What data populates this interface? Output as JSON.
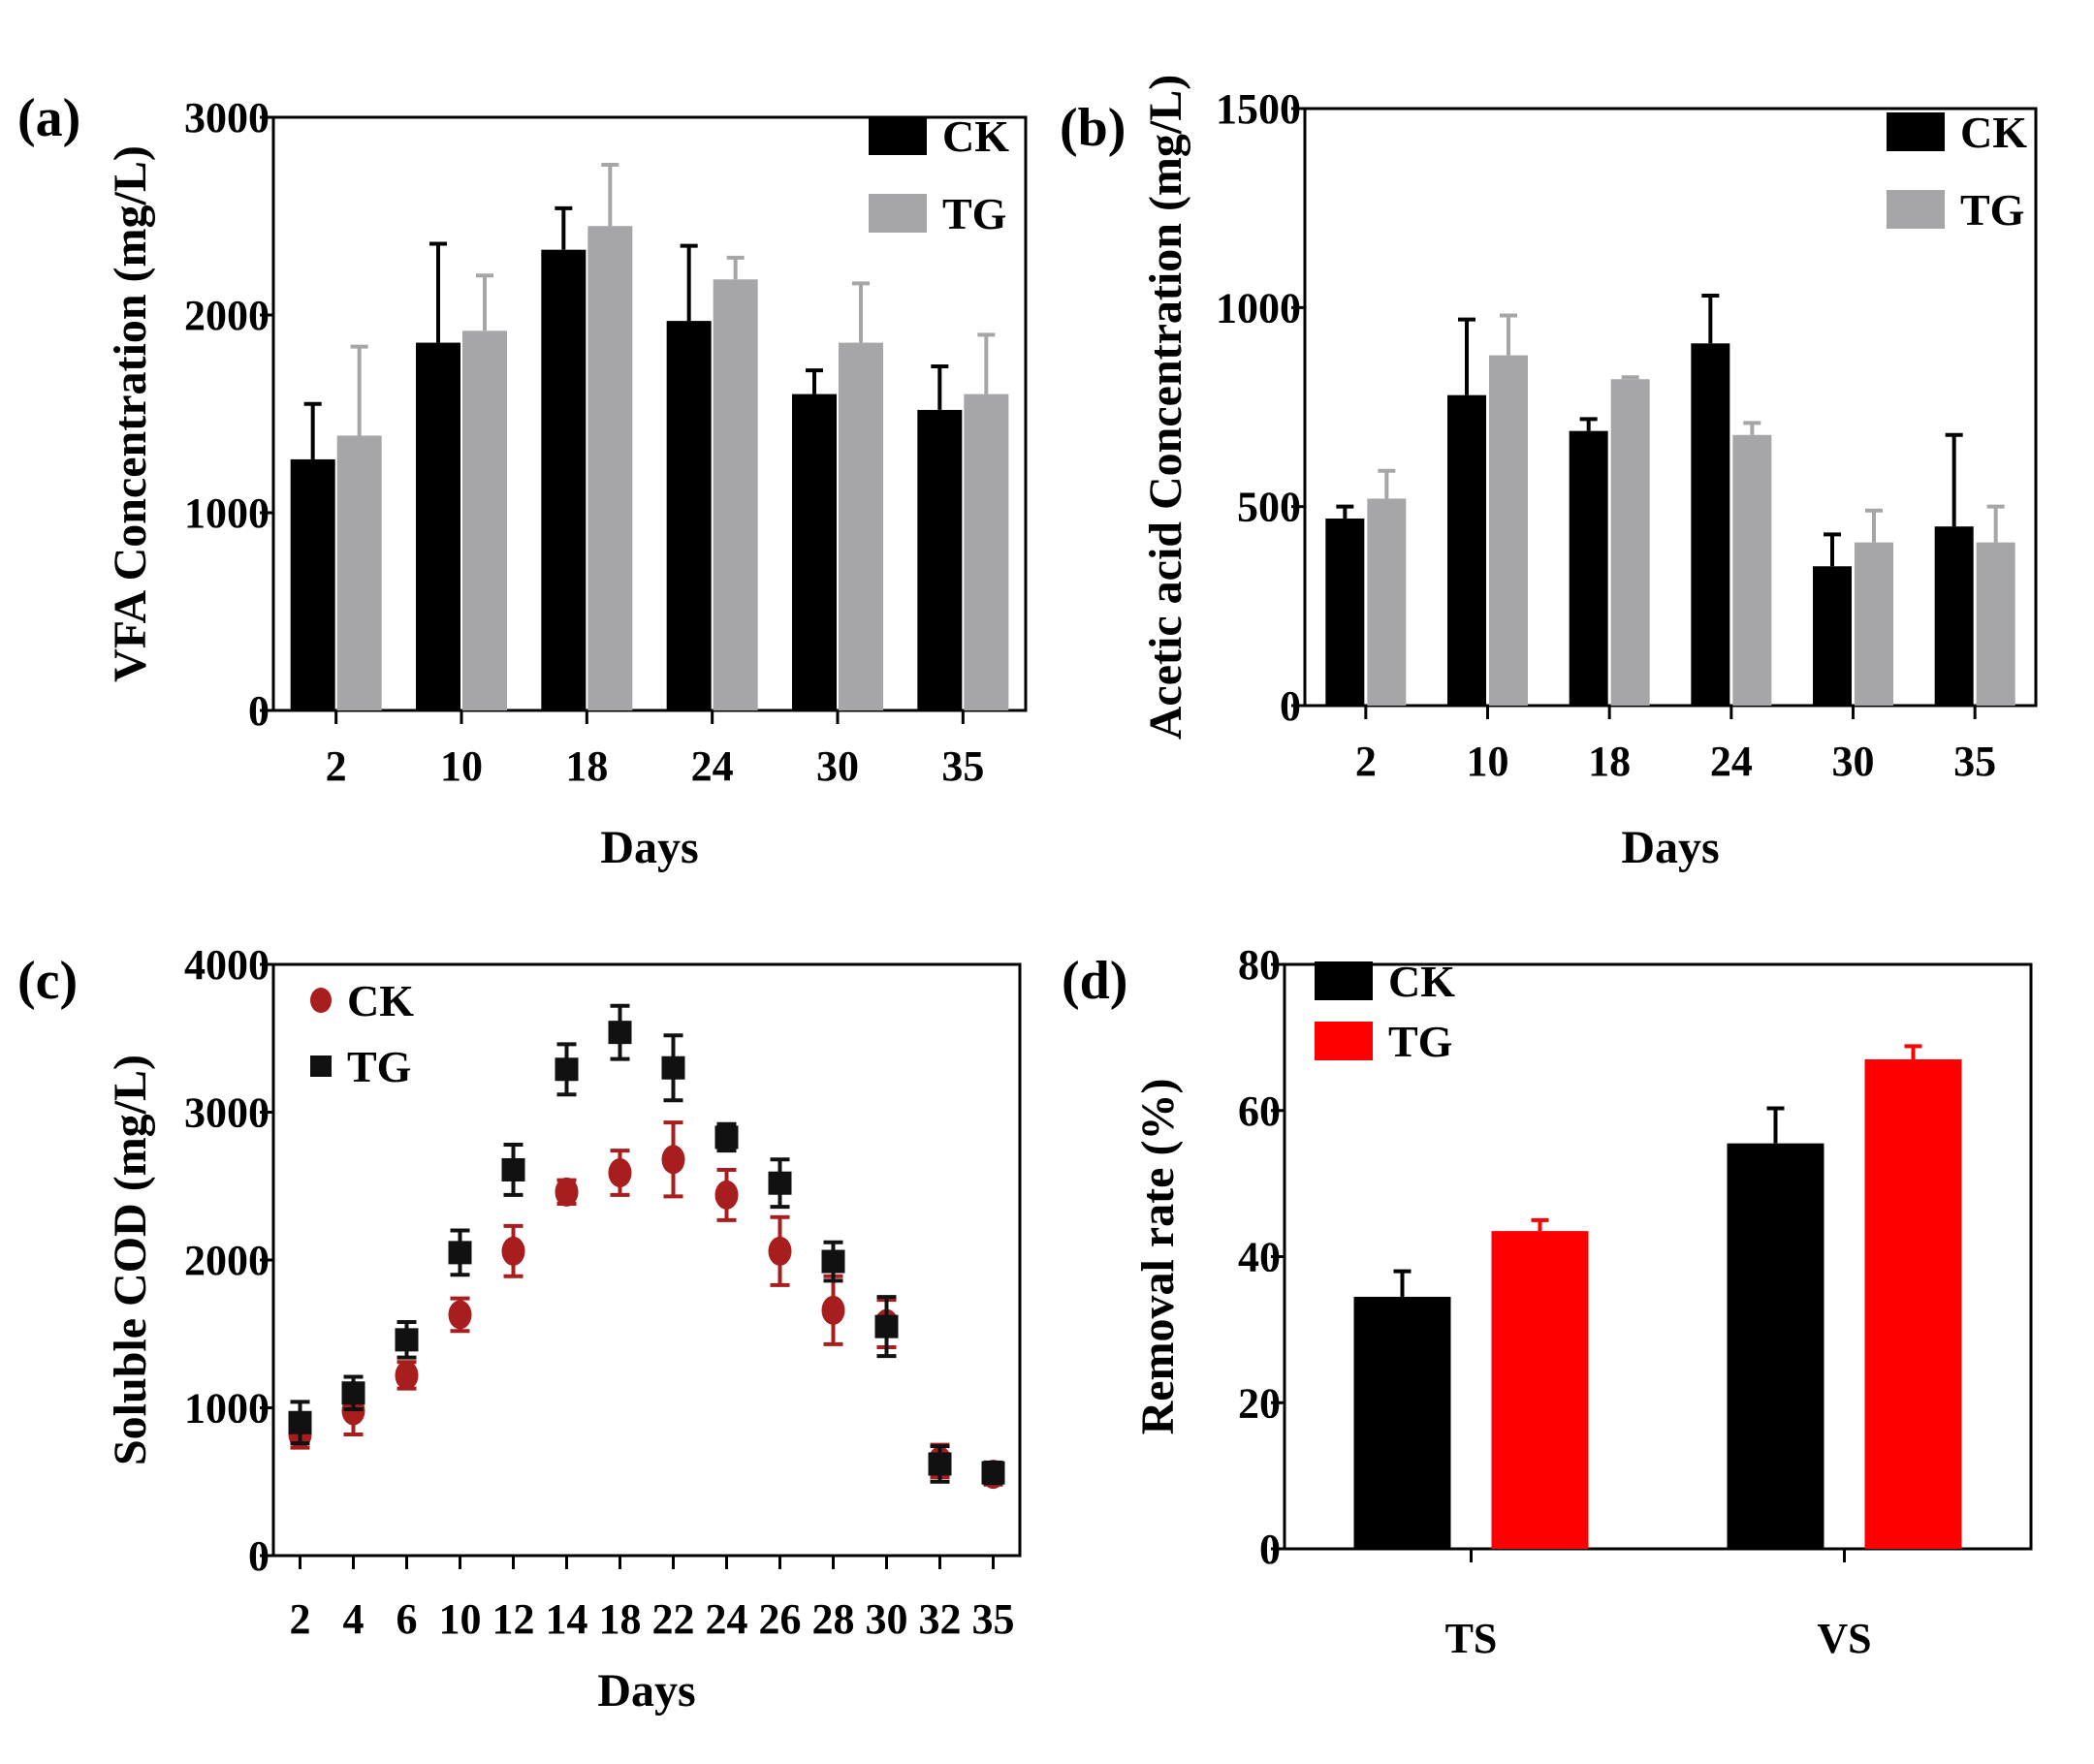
{
  "chart_data": [
    {
      "panel": "(a)",
      "type": "bar",
      "xlabel": "Days",
      "ylabel": "VFA Concentration (mg/L)",
      "ylim": [
        0,
        3000
      ],
      "yticks": [
        "0",
        "1000",
        "2000",
        "3000"
      ],
      "categories": [
        "2",
        "10",
        "18",
        "24",
        "30",
        "35"
      ],
      "legend_position": "top-right",
      "series": [
        {
          "name": "CK",
          "color": "#000000",
          "values": [
            1270,
            1860,
            2330,
            1970,
            1600,
            1520
          ],
          "errors": [
            280,
            500,
            210,
            380,
            120,
            220
          ]
        },
        {
          "name": "TG",
          "color": "#a6a6a8",
          "values": [
            1390,
            1920,
            2450,
            2180,
            1860,
            1600
          ],
          "errors": [
            450,
            280,
            310,
            110,
            300,
            300
          ]
        }
      ]
    },
    {
      "panel": "(b)",
      "type": "bar",
      "xlabel": "Days",
      "ylabel": "Acetic acid Concentration (mg/L)",
      "ylim": [
        0,
        1500
      ],
      "yticks": [
        "0",
        "500",
        "1000",
        "1500"
      ],
      "categories": [
        "2",
        "10",
        "18",
        "24",
        "30",
        "35"
      ],
      "legend_position": "top-right",
      "series": [
        {
          "name": "CK",
          "color": "#000000",
          "values": [
            470,
            780,
            690,
            910,
            350,
            450
          ],
          "errors": [
            30,
            190,
            30,
            120,
            80,
            230
          ]
        },
        {
          "name": "TG",
          "color": "#a6a6a8",
          "values": [
            520,
            880,
            820,
            680,
            410,
            410
          ],
          "errors": [
            70,
            100,
            5,
            30,
            80,
            90
          ]
        }
      ]
    },
    {
      "panel": "(c)",
      "type": "scatter",
      "xlabel": "Days",
      "ylabel": "Soluble COD (mg/L)",
      "ylim": [
        0,
        4000
      ],
      "yticks": [
        "0",
        "1000",
        "2000",
        "3000",
        "4000"
      ],
      "categories": [
        "2",
        "4",
        "6",
        "10",
        "12",
        "14",
        "18",
        "22",
        "24",
        "26",
        "28",
        "30",
        "32",
        "35"
      ],
      "legend_position": "top-left",
      "series": [
        {
          "name": "CK",
          "color": "#a81d1d",
          "marker": "circle",
          "values": [
            820,
            980,
            1220,
            1630,
            2060,
            2460,
            2590,
            2680,
            2440,
            2060,
            1660,
            1570,
            640,
            550
          ],
          "errors": [
            90,
            160,
            90,
            110,
            170,
            80,
            150,
            250,
            170,
            230,
            230,
            160,
            110,
            70
          ]
        },
        {
          "name": "TG",
          "color": "#111111",
          "marker": "square",
          "values": [
            900,
            1100,
            1460,
            2050,
            2610,
            3290,
            3540,
            3300,
            2830,
            2520,
            1990,
            1550,
            620,
            560
          ],
          "errors": [
            140,
            110,
            120,
            150,
            170,
            170,
            180,
            220,
            90,
            160,
            130,
            200,
            120,
            70
          ]
        }
      ]
    },
    {
      "panel": "(d)",
      "type": "bar",
      "xlabel": "",
      "ylabel": "Removal rate (%)",
      "ylim": [
        0,
        80
      ],
      "yticks": [
        "0",
        "20",
        "40",
        "60",
        "80"
      ],
      "categories": [
        "TS",
        "VS"
      ],
      "legend_position": "top-left",
      "series": [
        {
          "name": "CK",
          "color": "#000000",
          "values": [
            34.5,
            55.5
          ],
          "errors": [
            3.5,
            4.8
          ]
        },
        {
          "name": "TG",
          "color": "#ff0000",
          "values": [
            43.5,
            67
          ],
          "errors": [
            1.5,
            1.8
          ]
        }
      ]
    }
  ]
}
